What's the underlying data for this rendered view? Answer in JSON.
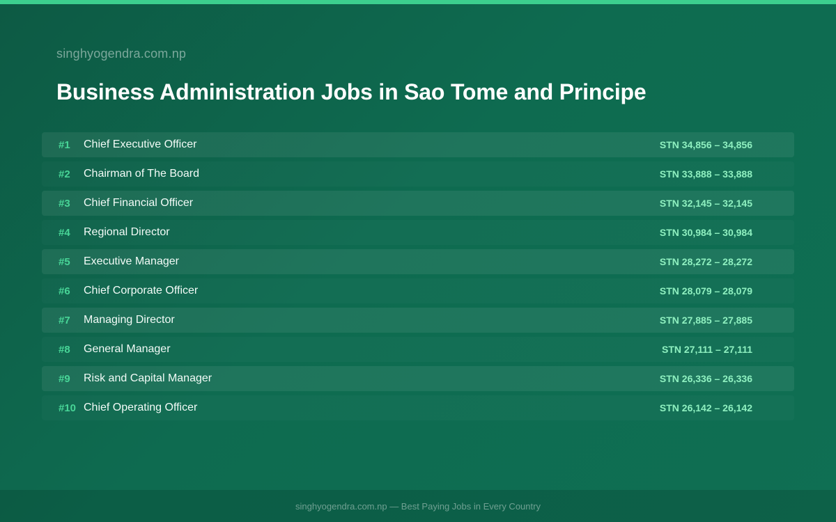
{
  "header": {
    "site_name": "singhyogendra.com.np",
    "title": "Business Administration Jobs in Sao Tome and Principe"
  },
  "jobs": [
    {
      "rank": "#1",
      "title": "Chief Executive Officer",
      "salary": "STN 34,856 – 34,856"
    },
    {
      "rank": "#2",
      "title": "Chairman of The Board",
      "salary": "STN 33,888 – 33,888"
    },
    {
      "rank": "#3",
      "title": "Chief Financial Officer",
      "salary": "STN 32,145 – 32,145"
    },
    {
      "rank": "#4",
      "title": "Regional Director",
      "salary": "STN 30,984 – 30,984"
    },
    {
      "rank": "#5",
      "title": "Executive Manager",
      "salary": "STN 28,272 – 28,272"
    },
    {
      "rank": "#6",
      "title": "Chief Corporate Officer",
      "salary": "STN 28,079 – 28,079"
    },
    {
      "rank": "#7",
      "title": "Managing Director",
      "salary": "STN 27,885 – 27,885"
    },
    {
      "rank": "#8",
      "title": "General Manager",
      "salary": "STN 27,111 – 27,111"
    },
    {
      "rank": "#9",
      "title": "Risk and Capital Manager",
      "salary": "STN 26,336 – 26,336"
    },
    {
      "rank": "#10",
      "title": "Chief Operating Officer",
      "salary": "STN 26,142 – 26,142"
    }
  ],
  "footer": {
    "text": "singhyogendra.com.np — Best Paying Jobs in Every Country"
  },
  "colors": {
    "background": "#0e6b50",
    "accent": "#3ccf8e",
    "rank": "#48d597",
    "salary": "#8ff0c0"
  }
}
